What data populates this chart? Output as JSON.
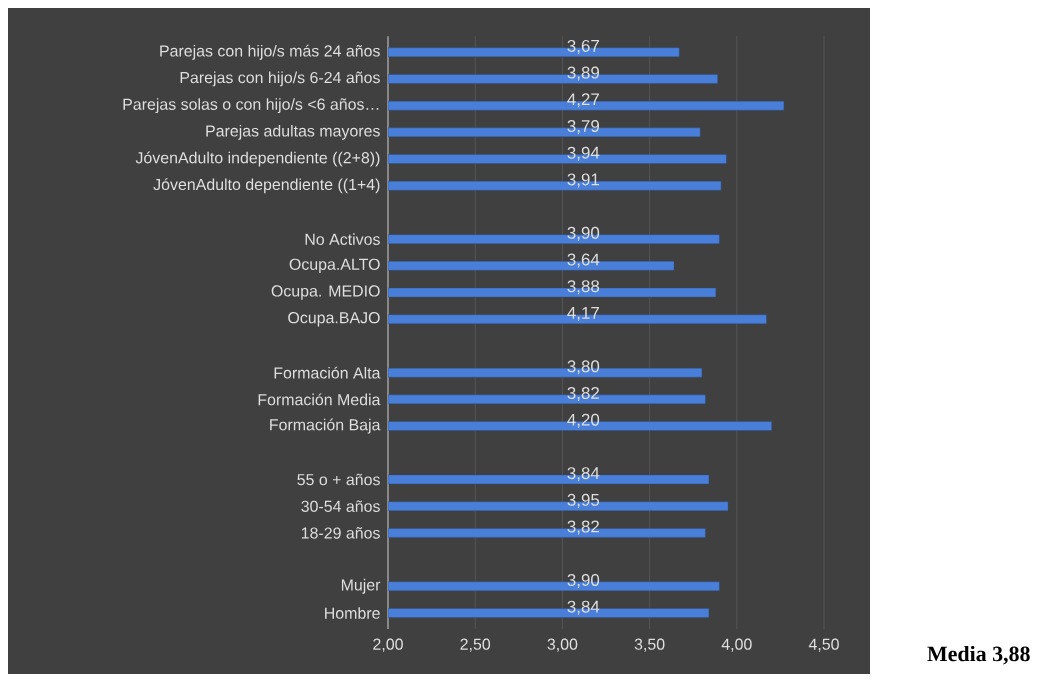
{
  "chart_data": {
    "type": "bar",
    "orientation": "horizontal",
    "categories": [
      "Parejas con hijo/s más 24 años",
      "Parejas con hijo/s 6-24 años",
      "Parejas solas o con hijo/s <6 años…",
      "Parejas adultas mayores",
      "JóvenAdulto independiente ((2+8))",
      "JóvenAdulto dependiente ((1+4)",
      null,
      "No Activos",
      "Ocupa.ALTO",
      "Ocupa. MEDIO",
      "Ocupa.BAJO",
      null,
      "Formación Alta",
      "Formación Media",
      "Formación Baja",
      null,
      "55 o + años",
      "30-54 años",
      "18-29 años",
      null,
      "Mujer",
      "Hombre"
    ],
    "values": [
      3.67,
      3.89,
      4.27,
      3.79,
      3.94,
      3.91,
      null,
      3.9,
      3.64,
      3.88,
      4.17,
      null,
      3.8,
      3.82,
      4.2,
      null,
      3.84,
      3.95,
      3.82,
      null,
      3.9,
      3.84
    ],
    "value_labels": [
      "3,67",
      "3,89",
      "4,27",
      "3,79",
      "3,94",
      "3,91",
      null,
      "3,90",
      "3,64",
      "3,88",
      "4,17",
      null,
      "3,80",
      "3,82",
      "4,20",
      null,
      "3,84",
      "3,95",
      "3,82",
      null,
      "3,90",
      "3,84"
    ],
    "color": "#4a7fd9",
    "xlim": [
      2,
      4.75
    ],
    "xticks": [
      {
        "value": 2,
        "label": "2,00"
      },
      {
        "value": 2.5,
        "label": "2,50"
      },
      {
        "value": 3,
        "label": "3,00"
      },
      {
        "value": 3.5,
        "label": "3,50"
      },
      {
        "value": 4,
        "label": "4,00"
      },
      {
        "value": 4.5,
        "label": "4,50"
      }
    ],
    "grid": "x",
    "annotations": [
      "Media 3,88"
    ]
  }
}
